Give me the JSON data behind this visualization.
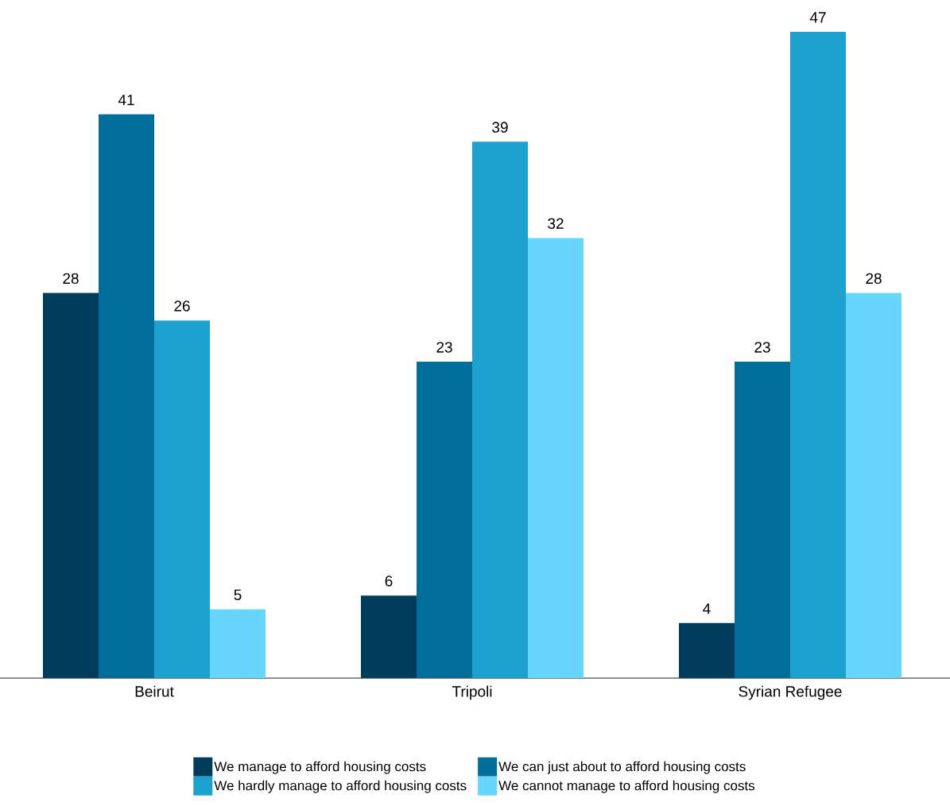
{
  "chart_data": {
    "type": "bar",
    "categories": [
      "Beirut",
      "Tripoli",
      "Syrian Refugee"
    ],
    "series": [
      {
        "name": "We manage to afford housing costs",
        "color": "#003d5c",
        "values": [
          28,
          6,
          4
        ]
      },
      {
        "name": "We can just about to afford housing costs",
        "color": "#006e99",
        "values": [
          41,
          23,
          23
        ]
      },
      {
        "name": "We hardly manage to afford housing costs",
        "color": "#1aa1ce",
        "values": [
          26,
          39,
          47
        ]
      },
      {
        "name": "We cannot manage to afford housing costs",
        "color": "#66d6ff",
        "values": [
          5,
          32,
          28
        ]
      }
    ],
    "data_labels": true,
    "legend": "bottom"
  }
}
